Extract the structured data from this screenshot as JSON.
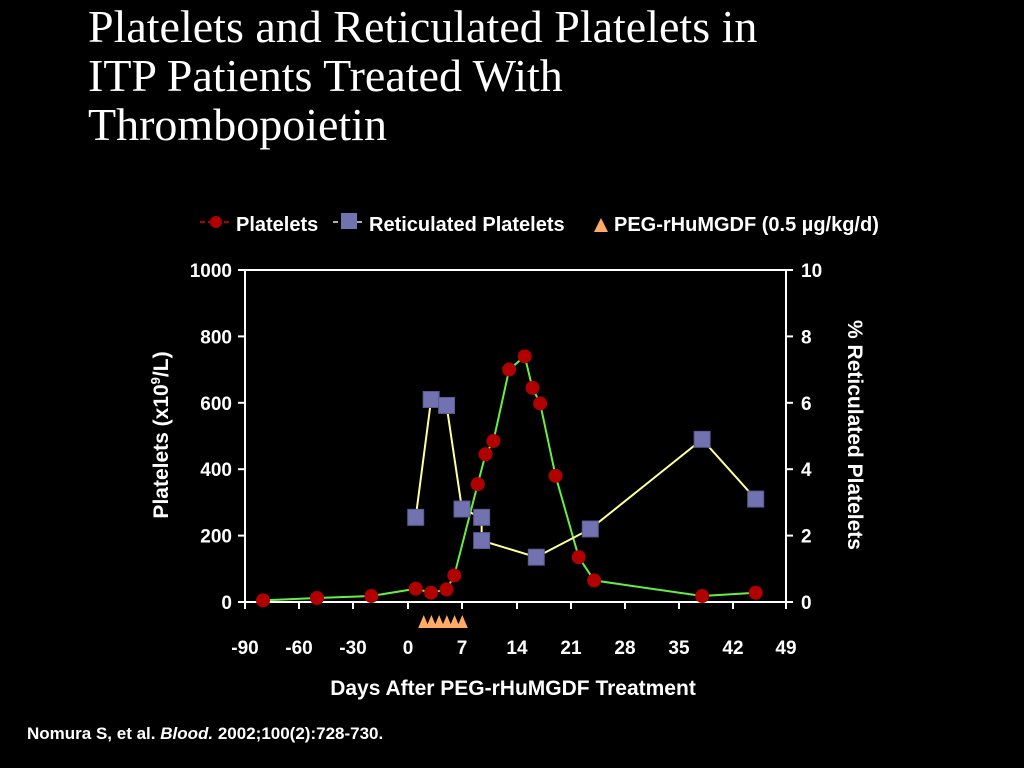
{
  "slide": {
    "title_lines": [
      "Platelets and Reticulated Platelets in",
      "ITP Patients Treated With",
      "Thrombopoietin"
    ],
    "citation": {
      "authors": "Nomura S, et al.",
      "journal": "Blood.",
      "details": "2002;100(2):728-730."
    }
  },
  "chart_data": {
    "type": "line",
    "xlabel": "Days After PEG-rHuMGDF Treatment",
    "ylabel_left": "Platelets (x10",
    "ylabel_left_sup": "9",
    "ylabel_left_suffix": "/L)",
    "ylabel_right": "% Reticulated Platelets",
    "x_tick_labels": [
      "-90",
      "-60",
      "-30",
      "0",
      "7",
      "14",
      "21",
      "28",
      "35",
      "42",
      "49"
    ],
    "y_left_ticks": [
      "0",
      "200",
      "400",
      "600",
      "800",
      "1000"
    ],
    "y_right_ticks": [
      "0",
      "2",
      "4",
      "6",
      "8",
      "10"
    ],
    "ylim_left": [
      0,
      1000
    ],
    "ylim_right": [
      0,
      10
    ],
    "grid": false,
    "legend_position": "top",
    "series": [
      {
        "name": "Platelets",
        "axis": "left",
        "marker": "circle",
        "marker_color": "#b00000",
        "line_color": "#66ee44",
        "points": [
          {
            "x": -80,
            "y": 5
          },
          {
            "x": -50,
            "y": 12
          },
          {
            "x": -20,
            "y": 18
          },
          {
            "x": 1,
            "y": 40
          },
          {
            "x": 3,
            "y": 28
          },
          {
            "x": 5,
            "y": 38
          },
          {
            "x": 6,
            "y": 80
          },
          {
            "x": 9,
            "y": 355
          },
          {
            "x": 10,
            "y": 445
          },
          {
            "x": 11,
            "y": 485
          },
          {
            "x": 13,
            "y": 700
          },
          {
            "x": 15,
            "y": 740
          },
          {
            "x": 16,
            "y": 645
          },
          {
            "x": 17,
            "y": 598
          },
          {
            "x": 19,
            "y": 380
          },
          {
            "x": 22,
            "y": 135
          },
          {
            "x": 24,
            "y": 65
          },
          {
            "x": 38,
            "y": 18
          },
          {
            "x": 45,
            "y": 28
          }
        ]
      },
      {
        "name": "Reticulated Platelets",
        "axis": "right",
        "marker": "square",
        "marker_color": "#7272b0",
        "line_color": "#ffff99",
        "points": [
          {
            "x": 1,
            "y": 2.55
          },
          {
            "x": 3,
            "y": 6.1
          },
          {
            "x": 5,
            "y": 5.92
          },
          {
            "x": 7,
            "y": 2.8
          },
          {
            "x": 9.5,
            "y": 2.55
          },
          {
            "x": 9.5,
            "y": 1.85
          },
          {
            "x": 16.5,
            "y": 1.35
          },
          {
            "x": 23.5,
            "y": 2.2
          },
          {
            "x": 38,
            "y": 4.9
          },
          {
            "x": 45,
            "y": 3.1
          }
        ]
      }
    ],
    "treatment_marker": {
      "name": "PEG-rHuMGDF (0.5 µg/kg/d)",
      "marker": "triangle",
      "color": "#ffaa66",
      "days": [
        1,
        2,
        3,
        4,
        5,
        6
      ]
    }
  }
}
